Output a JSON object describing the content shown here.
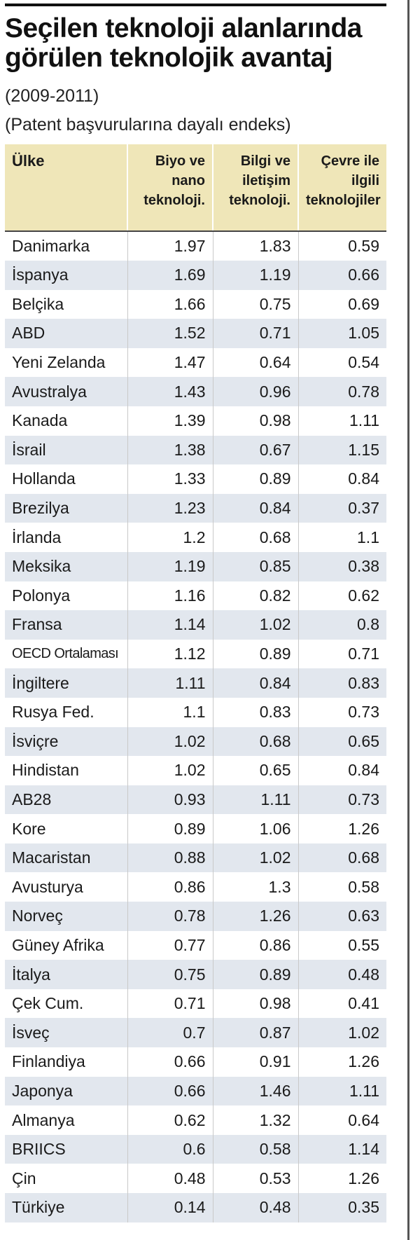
{
  "title_line1": "Seçilen teknoloji alanlarında",
  "title_line2": "görülen teknolojik avantaj",
  "subtitle_years": "(2009-2011)",
  "subtitle_note": "(Patent başvurularına dayalı endeks)",
  "table": {
    "headers": {
      "country": "Ülke",
      "bio_line1": "Biyo ve",
      "bio_line2": "nano",
      "bio_line3": "teknoloji.",
      "ict_line1": "Bilgi ve",
      "ict_line2": "iletişim",
      "ict_line3": "teknoloji.",
      "env_line1": "Çevre ile",
      "env_line2": "ilgili",
      "env_line3": "teknolojiler"
    },
    "rows": [
      {
        "country": "Danimarka",
        "bio": "1.97",
        "ict": "1.83",
        "env": "0.59"
      },
      {
        "country": "İspanya",
        "bio": "1.69",
        "ict": "1.19",
        "env": "0.66"
      },
      {
        "country": "Belçika",
        "bio": "1.66",
        "ict": "0.75",
        "env": "0.69"
      },
      {
        "country": "ABD",
        "bio": "1.52",
        "ict": "0.71",
        "env": "1.05"
      },
      {
        "country": "Yeni Zelanda",
        "bio": "1.47",
        "ict": "0.64",
        "env": "0.54"
      },
      {
        "country": "Avustralya",
        "bio": "1.43",
        "ict": "0.96",
        "env": "0.78"
      },
      {
        "country": "Kanada",
        "bio": "1.39",
        "ict": "0.98",
        "env": "1.11"
      },
      {
        "country": "İsrail",
        "bio": "1.38",
        "ict": "0.67",
        "env": "1.15"
      },
      {
        "country": "Hollanda",
        "bio": "1.33",
        "ict": "0.89",
        "env": "0.84"
      },
      {
        "country": "Brezilya",
        "bio": "1.23",
        "ict": "0.84",
        "env": "0.37"
      },
      {
        "country": "İrlanda",
        "bio": "1.2",
        "ict": "0.68",
        "env": "1.1"
      },
      {
        "country": "Meksika",
        "bio": "1.19",
        "ict": "0.85",
        "env": "0.38"
      },
      {
        "country": "Polonya",
        "bio": "1.16",
        "ict": "0.82",
        "env": "0.62"
      },
      {
        "country": "Fransa",
        "bio": "1.14",
        "ict": "1.02",
        "env": "0.8"
      },
      {
        "country": "OECD Ortalaması",
        "bio": "1.12",
        "ict": "0.89",
        "env": "0.71"
      },
      {
        "country": "İngiltere",
        "bio": "1.11",
        "ict": "0.84",
        "env": "0.83"
      },
      {
        "country": "Rusya Fed.",
        "bio": "1.1",
        "ict": "0.83",
        "env": "0.73"
      },
      {
        "country": "İsviçre",
        "bio": "1.02",
        "ict": "0.68",
        "env": "0.65"
      },
      {
        "country": "Hindistan",
        "bio": "1.02",
        "ict": "0.65",
        "env": "0.84"
      },
      {
        "country": "AB28",
        "bio": "0.93",
        "ict": "1.11",
        "env": "0.73"
      },
      {
        "country": "Kore",
        "bio": "0.89",
        "ict": "1.06",
        "env": "1.26"
      },
      {
        "country": "Macaristan",
        "bio": "0.88",
        "ict": "1.02",
        "env": "0.68"
      },
      {
        "country": "Avusturya",
        "bio": "0.86",
        "ict": "1.3",
        "env": "0.58"
      },
      {
        "country": "Norveç",
        "bio": "0.78",
        "ict": "1.26",
        "env": "0.63"
      },
      {
        "country": "Güney Afrika",
        "bio": "0.77",
        "ict": "0.86",
        "env": "0.55"
      },
      {
        "country": "İtalya",
        "bio": "0.75",
        "ict": "0.89",
        "env": "0.48"
      },
      {
        "country": "Çek Cum.",
        "bio": "0.71",
        "ict": "0.98",
        "env": "0.41"
      },
      {
        "country": "İsveç",
        "bio": "0.7",
        "ict": "0.87",
        "env": "1.02"
      },
      {
        "country": "Finlandiya",
        "bio": "0.66",
        "ict": "0.91",
        "env": "1.26"
      },
      {
        "country": "Japonya",
        "bio": "0.66",
        "ict": "1.46",
        "env": "1.11"
      },
      {
        "country": "Almanya",
        "bio": "0.62",
        "ict": "1.32",
        "env": "0.64"
      },
      {
        "country": "BRIICS",
        "bio": "0.6",
        "ict": "0.58",
        "env": "1.14"
      },
      {
        "country": "Çin",
        "bio": "0.48",
        "ict": "0.53",
        "env": "1.26"
      },
      {
        "country": "Türkiye",
        "bio": "0.14",
        "ict": "0.48",
        "env": "0.35"
      }
    ]
  }
}
